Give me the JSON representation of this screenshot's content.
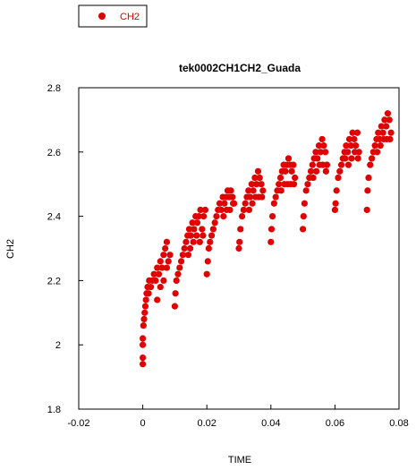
{
  "chart_data": {
    "type": "scatter",
    "title": "tek0002CH1CH2_Guada",
    "xlabel": "TIME",
    "ylabel": "CH2",
    "xlim": [
      -0.02,
      0.08
    ],
    "ylim": [
      1.8,
      2.8
    ],
    "xticks": [
      "-0.02",
      "0",
      "0.02",
      "0.04",
      "0.06",
      "0.08"
    ],
    "yticks": [
      "1.8",
      "2",
      "2.2",
      "2.4",
      "2.6",
      "2.8"
    ],
    "legend": {
      "position": "top-left, outside plot",
      "entries": [
        "CH2"
      ]
    },
    "grid": false,
    "colors": {
      "series": "#e00000",
      "axis": "#000000"
    },
    "series": [
      {
        "name": "CH2",
        "marker": "filled-circle",
        "points": [
          [
            0.0,
            1.94
          ],
          [
            0.0,
            1.96
          ],
          [
            0.0,
            2.0
          ],
          [
            0.0,
            2.02
          ],
          [
            0.0002,
            2.06
          ],
          [
            0.0004,
            2.08
          ],
          [
            0.0006,
            2.1
          ],
          [
            0.0008,
            2.12
          ],
          [
            0.001,
            2.14
          ],
          [
            0.0012,
            2.16
          ],
          [
            0.0015,
            2.18
          ],
          [
            0.0018,
            2.16
          ],
          [
            0.002,
            2.2
          ],
          [
            0.0025,
            2.18
          ],
          [
            0.003,
            2.2
          ],
          [
            0.0035,
            2.22
          ],
          [
            0.004,
            2.2
          ],
          [
            0.0045,
            2.24
          ],
          [
            0.005,
            2.22
          ],
          [
            0.0055,
            2.26
          ],
          [
            0.006,
            2.24
          ],
          [
            0.0065,
            2.28
          ],
          [
            0.007,
            2.3
          ],
          [
            0.0075,
            2.32
          ],
          [
            0.0045,
            2.14
          ],
          [
            0.0055,
            2.18
          ],
          [
            0.0065,
            2.2
          ],
          [
            0.0075,
            2.24
          ],
          [
            0.008,
            2.26
          ],
          [
            0.0085,
            2.28
          ],
          [
            0.01,
            2.12
          ],
          [
            0.0102,
            2.16
          ],
          [
            0.0105,
            2.2
          ],
          [
            0.011,
            2.22
          ],
          [
            0.0115,
            2.24
          ],
          [
            0.012,
            2.26
          ],
          [
            0.0125,
            2.28
          ],
          [
            0.013,
            2.3
          ],
          [
            0.0135,
            2.32
          ],
          [
            0.014,
            2.34
          ],
          [
            0.0145,
            2.36
          ],
          [
            0.015,
            2.34
          ],
          [
            0.0155,
            2.38
          ],
          [
            0.016,
            2.36
          ],
          [
            0.0165,
            2.4
          ],
          [
            0.017,
            2.38
          ],
          [
            0.0175,
            2.4
          ],
          [
            0.018,
            2.42
          ],
          [
            0.0185,
            2.36
          ],
          [
            0.019,
            2.4
          ],
          [
            0.0195,
            2.42
          ],
          [
            0.0142,
            2.28
          ],
          [
            0.0148,
            2.3
          ],
          [
            0.0158,
            2.32
          ],
          [
            0.0168,
            2.34
          ],
          [
            0.0178,
            2.32
          ],
          [
            0.0188,
            2.34
          ],
          [
            0.02,
            2.22
          ],
          [
            0.0203,
            2.26
          ],
          [
            0.0206,
            2.3
          ],
          [
            0.021,
            2.32
          ],
          [
            0.0215,
            2.34
          ],
          [
            0.022,
            2.36
          ],
          [
            0.0225,
            2.38
          ],
          [
            0.023,
            2.4
          ],
          [
            0.0235,
            2.42
          ],
          [
            0.024,
            2.44
          ],
          [
            0.0245,
            2.42
          ],
          [
            0.025,
            2.46
          ],
          [
            0.0255,
            2.44
          ],
          [
            0.026,
            2.46
          ],
          [
            0.0265,
            2.48
          ],
          [
            0.027,
            2.46
          ],
          [
            0.0275,
            2.48
          ],
          [
            0.028,
            2.46
          ],
          [
            0.0285,
            2.44
          ],
          [
            0.0252,
            2.4
          ],
          [
            0.0262,
            2.42
          ],
          [
            0.0272,
            2.42
          ],
          [
            0.0282,
            2.44
          ],
          [
            0.03,
            2.3
          ],
          [
            0.0302,
            2.32
          ],
          [
            0.0305,
            2.36
          ],
          [
            0.031,
            2.4
          ],
          [
            0.0315,
            2.42
          ],
          [
            0.032,
            2.44
          ],
          [
            0.0325,
            2.46
          ],
          [
            0.033,
            2.48
          ],
          [
            0.0335,
            2.46
          ],
          [
            0.034,
            2.5
          ],
          [
            0.0345,
            2.48
          ],
          [
            0.035,
            2.52
          ],
          [
            0.0355,
            2.5
          ],
          [
            0.036,
            2.54
          ],
          [
            0.0365,
            2.52
          ],
          [
            0.037,
            2.5
          ],
          [
            0.0375,
            2.48
          ],
          [
            0.0332,
            2.42
          ],
          [
            0.0342,
            2.44
          ],
          [
            0.0352,
            2.46
          ],
          [
            0.0362,
            2.46
          ],
          [
            0.0372,
            2.46
          ],
          [
            0.04,
            2.32
          ],
          [
            0.0402,
            2.36
          ],
          [
            0.0405,
            2.4
          ],
          [
            0.041,
            2.44
          ],
          [
            0.0415,
            2.46
          ],
          [
            0.042,
            2.48
          ],
          [
            0.0425,
            2.5
          ],
          [
            0.043,
            2.52
          ],
          [
            0.0435,
            2.54
          ],
          [
            0.044,
            2.56
          ],
          [
            0.0445,
            2.54
          ],
          [
            0.045,
            2.56
          ],
          [
            0.0455,
            2.58
          ],
          [
            0.046,
            2.56
          ],
          [
            0.0465,
            2.54
          ],
          [
            0.047,
            2.56
          ],
          [
            0.0475,
            2.52
          ],
          [
            0.0432,
            2.48
          ],
          [
            0.0442,
            2.5
          ],
          [
            0.0452,
            2.5
          ],
          [
            0.0462,
            2.5
          ],
          [
            0.0472,
            2.5
          ],
          [
            0.05,
            2.36
          ],
          [
            0.0502,
            2.4
          ],
          [
            0.0505,
            2.44
          ],
          [
            0.051,
            2.48
          ],
          [
            0.0515,
            2.5
          ],
          [
            0.052,
            2.52
          ],
          [
            0.0525,
            2.54
          ],
          [
            0.053,
            2.56
          ],
          [
            0.0535,
            2.58
          ],
          [
            0.054,
            2.6
          ],
          [
            0.0545,
            2.58
          ],
          [
            0.055,
            2.62
          ],
          [
            0.0555,
            2.6
          ],
          [
            0.056,
            2.64
          ],
          [
            0.0565,
            2.62
          ],
          [
            0.057,
            2.6
          ],
          [
            0.0575,
            2.56
          ],
          [
            0.0532,
            2.52
          ],
          [
            0.0542,
            2.54
          ],
          [
            0.0552,
            2.56
          ],
          [
            0.0562,
            2.56
          ],
          [
            0.0572,
            2.54
          ],
          [
            0.06,
            2.42
          ],
          [
            0.0602,
            2.44
          ],
          [
            0.0605,
            2.48
          ],
          [
            0.061,
            2.52
          ],
          [
            0.0615,
            2.54
          ],
          [
            0.062,
            2.56
          ],
          [
            0.0625,
            2.58
          ],
          [
            0.063,
            2.6
          ],
          [
            0.0635,
            2.62
          ],
          [
            0.064,
            2.6
          ],
          [
            0.0645,
            2.64
          ],
          [
            0.065,
            2.62
          ],
          [
            0.0655,
            2.66
          ],
          [
            0.066,
            2.64
          ],
          [
            0.0665,
            2.62
          ],
          [
            0.067,
            2.66
          ],
          [
            0.0675,
            2.6
          ],
          [
            0.0632,
            2.58
          ],
          [
            0.0642,
            2.56
          ],
          [
            0.0652,
            2.58
          ],
          [
            0.0662,
            2.6
          ],
          [
            0.0672,
            2.58
          ],
          [
            0.07,
            2.42
          ],
          [
            0.0702,
            2.48
          ],
          [
            0.0705,
            2.52
          ],
          [
            0.071,
            2.56
          ],
          [
            0.0715,
            2.58
          ],
          [
            0.072,
            2.6
          ],
          [
            0.0725,
            2.62
          ],
          [
            0.073,
            2.64
          ],
          [
            0.0735,
            2.66
          ],
          [
            0.074,
            2.64
          ],
          [
            0.0745,
            2.68
          ],
          [
            0.075,
            2.66
          ],
          [
            0.0755,
            2.7
          ],
          [
            0.076,
            2.68
          ],
          [
            0.0765,
            2.72
          ],
          [
            0.077,
            2.7
          ],
          [
            0.0775,
            2.66
          ],
          [
            0.0732,
            2.6
          ],
          [
            0.0742,
            2.62
          ],
          [
            0.0752,
            2.64
          ],
          [
            0.0762,
            2.64
          ],
          [
            0.0772,
            2.64
          ]
        ]
      }
    ]
  }
}
